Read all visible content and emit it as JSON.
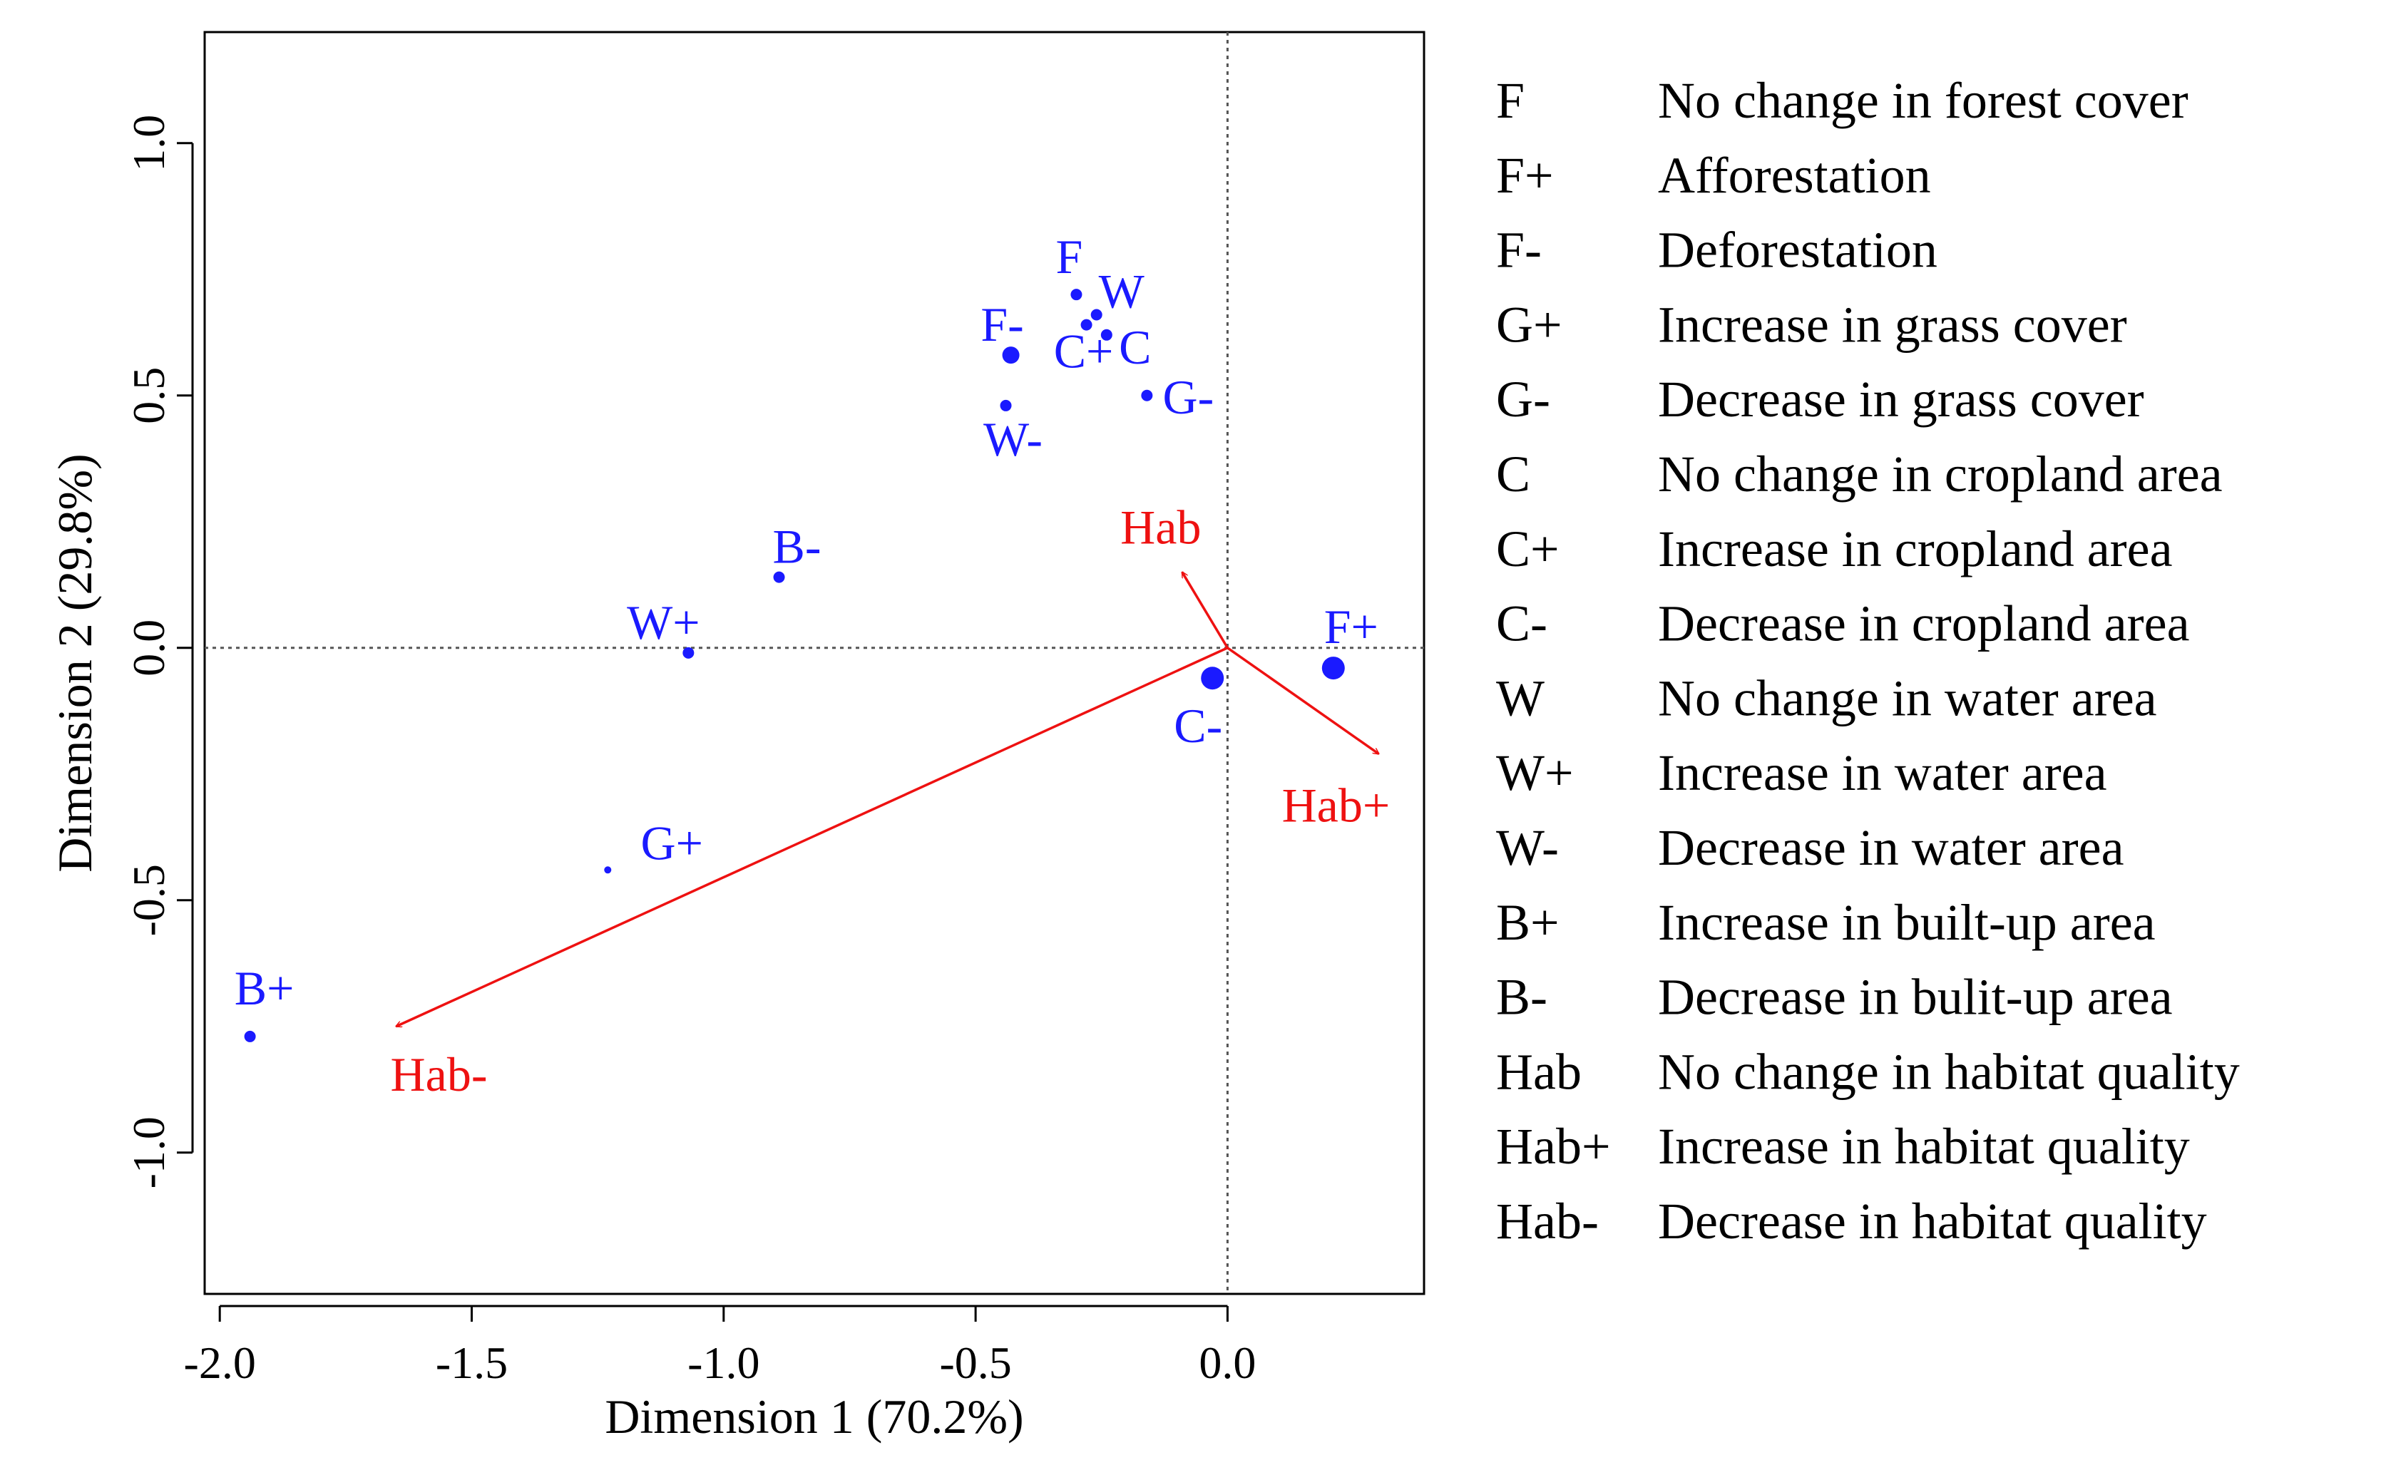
{
  "chart_data": {
    "type": "scatter",
    "title": "",
    "xlabel": "Dimension 1 (70.2%)",
    "ylabel": "Dimension 2 (29.8%)",
    "xlim": [
      -2.03,
      0.39
    ],
    "ylim": [
      -1.28,
      1.22
    ],
    "xticks": [
      -2.0,
      -1.5,
      -1.0,
      -0.5,
      0.0
    ],
    "xtick_labels": [
      "-2.0",
      "-1.5",
      "-1.0",
      "-0.5",
      "0.0"
    ],
    "yticks": [
      -1.0,
      -0.5,
      0.0,
      0.5,
      1.0
    ],
    "ytick_labels": [
      "-1.0",
      "-0.5",
      "0.0",
      "0.5",
      "1.0"
    ],
    "reference_lines": {
      "x": 0,
      "y": 0,
      "style": "dotted"
    },
    "grid": false,
    "legend_position": "right",
    "colors": {
      "points": "#1a1aff",
      "vectors": "#ee1111",
      "axis": "#000000"
    },
    "points": [
      {
        "label": "F",
        "x": -0.3,
        "y": 0.7,
        "size": "small"
      },
      {
        "label": "W",
        "x": -0.26,
        "y": 0.66,
        "size": "small"
      },
      {
        "label": "C",
        "x": -0.24,
        "y": 0.62,
        "size": "small"
      },
      {
        "label": "F-",
        "x": -0.43,
        "y": 0.58,
        "size": "medium"
      },
      {
        "label": "C+",
        "x": -0.28,
        "y": 0.64,
        "size": "small"
      },
      {
        "label": "G-",
        "x": -0.16,
        "y": 0.5,
        "size": "small"
      },
      {
        "label": "W-",
        "x": -0.44,
        "y": 0.48,
        "size": "small"
      },
      {
        "label": "B-",
        "x": -0.89,
        "y": 0.14,
        "size": "small"
      },
      {
        "label": "W+",
        "x": -1.07,
        "y": -0.01,
        "size": "small"
      },
      {
        "label": "C-",
        "x": -0.03,
        "y": -0.06,
        "size": "large"
      },
      {
        "label": "F+",
        "x": 0.21,
        "y": -0.04,
        "size": "large"
      },
      {
        "label": "G+",
        "x": -1.23,
        "y": -0.44,
        "size": "tiny"
      },
      {
        "label": "B+",
        "x": -1.94,
        "y": -0.77,
        "size": "small"
      }
    ],
    "vectors": [
      {
        "label": "Hab",
        "x": -0.09,
        "y": 0.15
      },
      {
        "label": "Hab+",
        "x": 0.3,
        "y": -0.21
      },
      {
        "label": "Hab-",
        "x": -1.65,
        "y": -0.75
      }
    ],
    "legend": [
      {
        "code": "F",
        "description": "No change in forest cover"
      },
      {
        "code": "F+",
        "description": "Afforestation"
      },
      {
        "code": "F-",
        "description": "Deforestation"
      },
      {
        "code": "G+",
        "description": "Increase in grass cover"
      },
      {
        "code": "G-",
        "description": "Decrease in grass cover"
      },
      {
        "code": "C",
        "description": "No change in cropland area"
      },
      {
        "code": "C+",
        "description": "Increase in cropland area"
      },
      {
        "code": "C-",
        "description": "Decrease in cropland area"
      },
      {
        "code": "W",
        "description": "No change in water area"
      },
      {
        "code": "W+",
        "description": "Increase in water area"
      },
      {
        "code": "W-",
        "description": "Decrease in water area"
      },
      {
        "code": "B+",
        "description": "Increase in built-up area"
      },
      {
        "code": "B-",
        "description": "Decrease in bulit-up area"
      },
      {
        "code": "Hab",
        "description": "No change in habitat quality"
      },
      {
        "code": "Hab+",
        "description": "Increase in habitat quality"
      },
      {
        "code": "Hab-",
        "description": "Decrease in habitat quality"
      }
    ]
  }
}
